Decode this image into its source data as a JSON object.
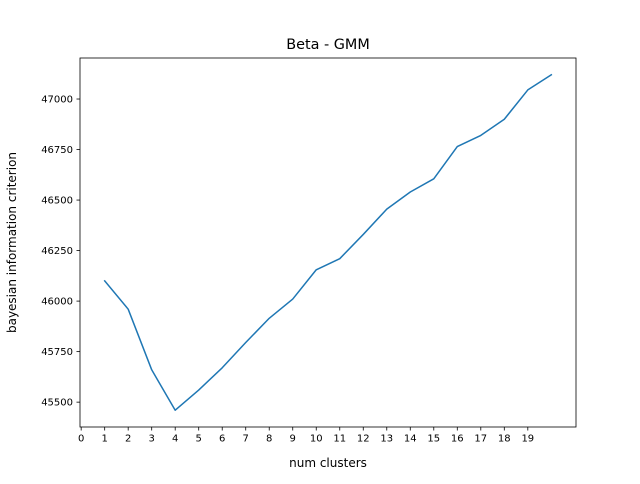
{
  "chart_data": {
    "type": "line",
    "title": "Beta - GMM",
    "xlabel": "num clusters",
    "ylabel": "bayesian information criterion",
    "x": [
      1,
      2,
      3,
      4,
      5,
      6,
      7,
      8,
      9,
      10,
      11,
      12,
      13,
      14,
      15,
      16,
      17,
      18,
      19,
      20
    ],
    "series": [
      {
        "values": [
          46100,
          45960,
          45660,
          45460,
          45560,
          45670,
          45795,
          45915,
          46010,
          46155,
          46210,
          46330,
          46455,
          46540,
          46605,
          46765,
          46820,
          46900,
          47045,
          47120
        ],
        "color": "#1f77b4"
      }
    ],
    "xticks": [
      0,
      1,
      2,
      3,
      4,
      5,
      6,
      7,
      8,
      9,
      10,
      11,
      12,
      13,
      14,
      15,
      16,
      17,
      18,
      19
    ],
    "yticks": [
      45500,
      45750,
      46000,
      46250,
      46500,
      46750,
      47000
    ],
    "xlim": [
      -0.05,
      21.05
    ],
    "ylim": [
      45377,
      47203
    ],
    "grid": false,
    "legend": "none"
  }
}
